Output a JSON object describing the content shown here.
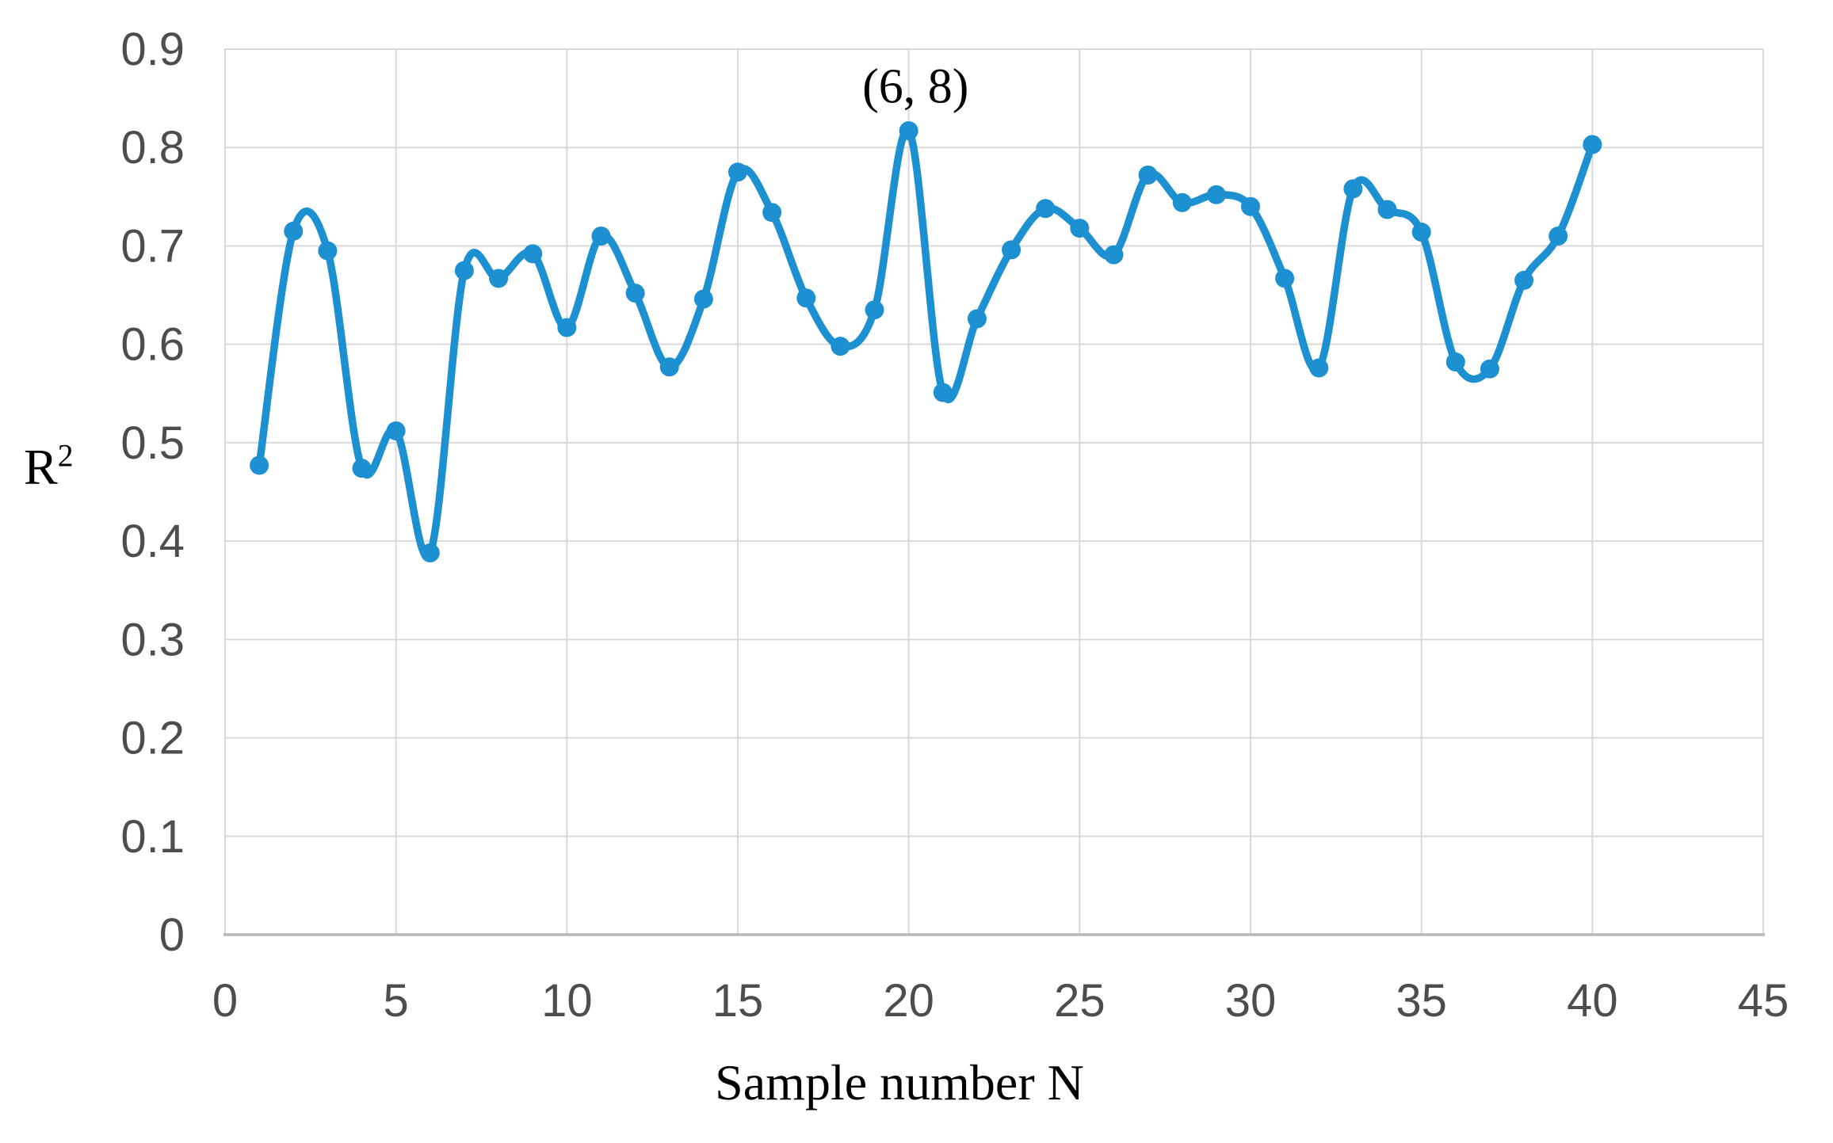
{
  "chart_data": {
    "type": "line",
    "title": "",
    "xlabel": "Sample number N",
    "ylabel_base": "R",
    "ylabel_sup": "2",
    "x": [
      1,
      2,
      3,
      4,
      5,
      6,
      7,
      8,
      9,
      10,
      11,
      12,
      13,
      14,
      15,
      16,
      17,
      18,
      19,
      20,
      21,
      22,
      23,
      24,
      25,
      26,
      27,
      28,
      29,
      30,
      31,
      32,
      33,
      34,
      35,
      36,
      37,
      38,
      39,
      40
    ],
    "values": [
      0.477,
      0.715,
      0.695,
      0.474,
      0.512,
      0.388,
      0.675,
      0.667,
      0.692,
      0.617,
      0.71,
      0.652,
      0.577,
      0.646,
      0.775,
      0.734,
      0.647,
      0.598,
      0.635,
      0.817,
      0.551,
      0.626,
      0.696,
      0.738,
      0.718,
      0.691,
      0.772,
      0.744,
      0.752,
      0.74,
      0.667,
      0.576,
      0.758,
      0.737,
      0.714,
      0.582,
      0.575,
      0.665,
      0.71,
      0.803
    ],
    "xlim": [
      0,
      45
    ],
    "ylim": [
      0,
      0.9
    ],
    "x_ticks": {
      "values": [
        0,
        5,
        10,
        15,
        20,
        25,
        30,
        35,
        40,
        45
      ],
      "labels": [
        "0",
        "5",
        "10",
        "15",
        "20",
        "25",
        "30",
        "35",
        "40",
        "45"
      ]
    },
    "y_ticks": {
      "values": [
        0,
        0.1,
        0.2,
        0.3,
        0.4,
        0.5,
        0.6,
        0.7,
        0.8,
        0.9
      ],
      "labels": [
        "0",
        "0.1",
        "0.2",
        "0.3",
        "0.4",
        "0.5",
        "0.6",
        "0.7",
        "0.8",
        "0.9"
      ]
    },
    "grid": true,
    "legend": "none",
    "marker": "circle",
    "smooth": true,
    "annotations": [
      {
        "text": "(6, 8)",
        "x": 20.2,
        "y": 0.861
      }
    ],
    "colors": {
      "series": "#1c90d1",
      "grid": "#d9d9d9",
      "axis": "#b7b7b7",
      "tick_text": "#4d4d4d",
      "title_text": "#000000"
    }
  }
}
